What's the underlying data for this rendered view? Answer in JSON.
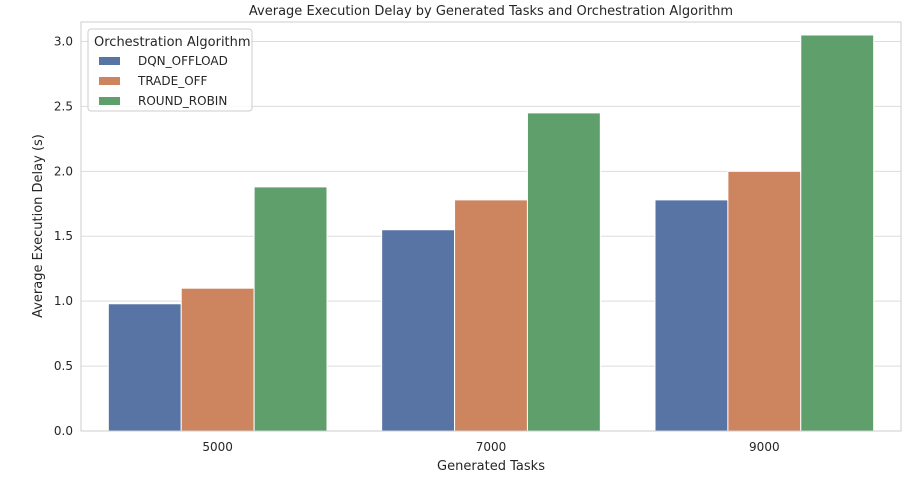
{
  "chart_data": {
    "type": "bar",
    "title": "Average Execution Delay by Generated Tasks and Orchestration Algorithm",
    "xlabel": "Generated Tasks",
    "ylabel": "Average Execution Delay (s)",
    "categories": [
      "5000",
      "7000",
      "9000"
    ],
    "series": [
      {
        "name": "DQN_OFFLOAD",
        "values": [
          0.98,
          1.55,
          1.78
        ],
        "color": "#5874a5"
      },
      {
        "name": "TRADE_OFF",
        "values": [
          1.1,
          1.78,
          2.0
        ],
        "color": "#cd8560"
      },
      {
        "name": "ROUND_ROBIN",
        "values": [
          1.88,
          2.45,
          3.05
        ],
        "color": "#5e9f6c"
      }
    ],
    "ylim": [
      0,
      3.15
    ],
    "yticks": [
      "0.0",
      "0.5",
      "1.0",
      "1.5",
      "2.0",
      "2.5",
      "3.0"
    ],
    "grid": true,
    "legend": {
      "title": "Orchestration Algorithm",
      "placement": "top-left"
    }
  }
}
